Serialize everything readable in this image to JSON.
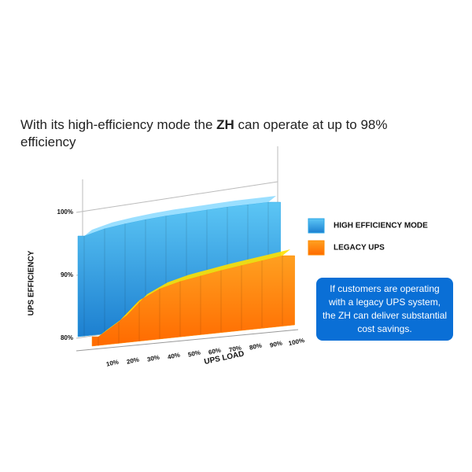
{
  "chart_data": {
    "type": "area3d",
    "title": [
      "With its high-efficiency mode the ",
      "ZH",
      " can operate at up to 98% efficiency"
    ],
    "x_label": "UPS LOAD",
    "y_label": "UPS EFFICIENCY",
    "categories": [
      "10%",
      "20%",
      "30%",
      "40%",
      "50%",
      "60%",
      "70%",
      "80%",
      "90%",
      "100%"
    ],
    "series": [
      {
        "name": "HIGH EFFICIENCY MODE",
        "color": "#2aa6e6",
        "values": [
          96,
          96.8,
          97.2,
          97.5,
          97.7,
          97.8,
          97.9,
          98,
          98,
          98
        ]
      },
      {
        "name": "LEGACY UPS",
        "color": "#ff8a00",
        "values": [
          81.5,
          83.5,
          86.5,
          88,
          88.8,
          89.3,
          89.8,
          90.2,
          90.6,
          91
        ]
      }
    ],
    "ylim": [
      80,
      100
    ],
    "yticks": [
      {
        "value": 80,
        "label": "80%"
      },
      {
        "value": 90,
        "label": "90%"
      },
      {
        "value": 100,
        "label": "100%"
      }
    ],
    "annotation": "If customers are operating with a legacy UPS system, the ZH can deliver substantial cost savings."
  }
}
